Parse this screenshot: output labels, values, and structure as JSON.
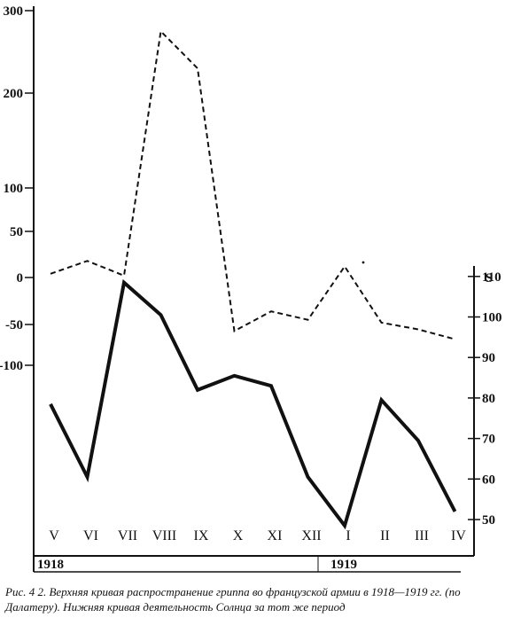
{
  "chart_data": {
    "type": "line",
    "categories": [
      "V",
      "VI",
      "VII",
      "VIII",
      "IX",
      "X",
      "XI",
      "XII",
      "I",
      "II",
      "III",
      "IV"
    ],
    "years": [
      {
        "label": "1918",
        "from": "V"
      },
      {
        "label": "1919",
        "from": "I"
      }
    ],
    "left_axis": {
      "ticks": [
        "300",
        "200",
        "100",
        "50",
        "0",
        "-50",
        "-100"
      ],
      "tick_values": [
        300,
        200,
        100,
        50,
        0,
        -50,
        -100
      ]
    },
    "right_axis": {
      "label": "S",
      "ticks": [
        "110",
        "100",
        "90",
        "80",
        "70",
        "60",
        "50"
      ],
      "tick_values": [
        110,
        100,
        90,
        80,
        70,
        60,
        50
      ]
    },
    "series": [
      {
        "axis": "left",
        "style": "dashed",
        "values": [
          4,
          18,
          2,
          275,
          230,
          -58,
          -36,
          -45,
          12,
          -48,
          -56,
          -68
        ]
      },
      {
        "axis": "right",
        "style": "solid",
        "values": [
          78.5,
          60.5,
          108.5,
          100.5,
          82,
          85.5,
          83,
          60.5,
          48.5,
          79.5,
          69.5,
          52
        ]
      }
    ]
  },
  "caption": "Рис. 4 2. Верхняя кривая распространение гриппа во французской армии в 1918—1919 гг. (по Далатеру). Нижняя кривая деятельность Солнца за тот же период"
}
